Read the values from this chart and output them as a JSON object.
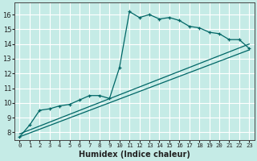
{
  "title": "",
  "xlabel": "Humidex (Indice chaleur)",
  "ylabel": "",
  "bg_color": "#c5ebe6",
  "line_color": "#006666",
  "grid_color": "#ffffff",
  "xlim": [
    -0.5,
    23.5
  ],
  "ylim": [
    7.5,
    16.8
  ],
  "xticks": [
    0,
    1,
    2,
    3,
    4,
    5,
    6,
    7,
    8,
    9,
    10,
    11,
    12,
    13,
    14,
    15,
    16,
    17,
    18,
    19,
    20,
    21,
    22,
    23
  ],
  "yticks": [
    8,
    9,
    10,
    11,
    12,
    13,
    14,
    15,
    16
  ],
  "main_x": [
    0,
    1,
    2,
    3,
    4,
    5,
    6,
    7,
    8,
    9,
    10,
    11,
    12,
    13,
    14,
    15,
    16,
    17,
    18,
    19,
    20,
    21,
    22,
    23
  ],
  "main_y": [
    7.7,
    8.5,
    9.5,
    9.6,
    9.8,
    9.9,
    10.2,
    10.5,
    10.5,
    10.3,
    12.4,
    16.2,
    15.8,
    16.0,
    15.7,
    15.8,
    15.6,
    15.2,
    15.1,
    14.8,
    14.7,
    14.3,
    14.3,
    13.7
  ],
  "line1_x": [
    0,
    23
  ],
  "line1_y": [
    7.7,
    13.6
  ],
  "line2_x": [
    0,
    23
  ],
  "line2_y": [
    7.9,
    14.0
  ]
}
